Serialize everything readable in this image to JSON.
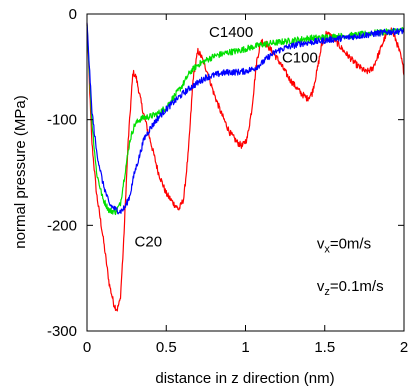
{
  "chart_data": {
    "type": "line",
    "xlabel": "distance in z direction (nm)",
    "ylabel": "normal pressure (MPa)",
    "xlim": [
      0,
      2
    ],
    "ylim": [
      -300,
      0
    ],
    "x_ticks": [
      0,
      0.5,
      1,
      1.5,
      2
    ],
    "x_tick_labels": [
      "0",
      "0.5",
      "1",
      "1.5",
      "2"
    ],
    "y_ticks": [
      0,
      -100,
      -200,
      -300
    ],
    "y_tick_labels": [
      "0",
      "-100",
      "-200",
      "-300"
    ],
    "grid": false,
    "series": [
      {
        "name": "C20",
        "color": "#ff0000",
        "points": [
          [
            0.0,
            -10
          ],
          [
            0.03,
            -120
          ],
          [
            0.06,
            -170
          ],
          [
            0.1,
            -210
          ],
          [
            0.14,
            -255
          ],
          [
            0.17,
            -275
          ],
          [
            0.19,
            -280
          ],
          [
            0.21,
            -270
          ],
          [
            0.23,
            -220
          ],
          [
            0.26,
            -120
          ],
          [
            0.29,
            -55
          ],
          [
            0.31,
            -60
          ],
          [
            0.35,
            -90
          ],
          [
            0.4,
            -120
          ],
          [
            0.45,
            -150
          ],
          [
            0.5,
            -170
          ],
          [
            0.55,
            -180
          ],
          [
            0.58,
            -185
          ],
          [
            0.61,
            -175
          ],
          [
            0.64,
            -130
          ],
          [
            0.67,
            -60
          ],
          [
            0.7,
            -35
          ],
          [
            0.72,
            -40
          ],
          [
            0.76,
            -55
          ],
          [
            0.8,
            -75
          ],
          [
            0.85,
            -95
          ],
          [
            0.9,
            -112
          ],
          [
            0.95,
            -122
          ],
          [
            0.98,
            -125
          ],
          [
            1.01,
            -118
          ],
          [
            1.04,
            -90
          ],
          [
            1.07,
            -45
          ],
          [
            1.1,
            -25
          ],
          [
            1.13,
            -28
          ],
          [
            1.2,
            -42
          ],
          [
            1.28,
            -62
          ],
          [
            1.35,
            -75
          ],
          [
            1.39,
            -80
          ],
          [
            1.42,
            -75
          ],
          [
            1.45,
            -55
          ],
          [
            1.48,
            -30
          ],
          [
            1.51,
            -18
          ],
          [
            1.55,
            -22
          ],
          [
            1.62,
            -35
          ],
          [
            1.7,
            -48
          ],
          [
            1.76,
            -55
          ],
          [
            1.8,
            -52
          ],
          [
            1.84,
            -38
          ],
          [
            1.88,
            -22
          ],
          [
            1.92,
            -15
          ],
          [
            1.95,
            -25
          ],
          [
            1.98,
            -40
          ],
          [
            2.0,
            -55
          ]
        ]
      },
      {
        "name": "C100",
        "color": "#0000ff",
        "points": [
          [
            0.0,
            -10
          ],
          [
            0.03,
            -90
          ],
          [
            0.06,
            -130
          ],
          [
            0.1,
            -160
          ],
          [
            0.14,
            -180
          ],
          [
            0.18,
            -185
          ],
          [
            0.21,
            -187
          ],
          [
            0.24,
            -183
          ],
          [
            0.27,
            -172
          ],
          [
            0.3,
            -150
          ],
          [
            0.33,
            -135
          ],
          [
            0.36,
            -118
          ],
          [
            0.4,
            -108
          ],
          [
            0.45,
            -98
          ],
          [
            0.5,
            -90
          ],
          [
            0.55,
            -83
          ],
          [
            0.6,
            -76
          ],
          [
            0.65,
            -70
          ],
          [
            0.7,
            -65
          ],
          [
            0.75,
            -60
          ],
          [
            0.8,
            -58
          ],
          [
            0.85,
            -56
          ],
          [
            0.9,
            -55
          ],
          [
            0.95,
            -55
          ],
          [
            1.0,
            -54
          ],
          [
            1.05,
            -52
          ],
          [
            1.1,
            -47
          ],
          [
            1.15,
            -40
          ],
          [
            1.2,
            -35
          ],
          [
            1.25,
            -32
          ],
          [
            1.3,
            -30
          ],
          [
            1.35,
            -28
          ],
          [
            1.4,
            -27
          ],
          [
            1.5,
            -25
          ],
          [
            1.6,
            -23
          ],
          [
            1.7,
            -21
          ],
          [
            1.8,
            -19
          ],
          [
            1.9,
            -17
          ],
          [
            2.0,
            -16
          ]
        ]
      },
      {
        "name": "C1400",
        "color": "#00e000",
        "points": [
          [
            0.0,
            -10
          ],
          [
            0.03,
            -100
          ],
          [
            0.06,
            -150
          ],
          [
            0.1,
            -175
          ],
          [
            0.14,
            -186
          ],
          [
            0.18,
            -187
          ],
          [
            0.21,
            -180
          ],
          [
            0.24,
            -150
          ],
          [
            0.27,
            -120
          ],
          [
            0.3,
            -105
          ],
          [
            0.33,
            -100
          ],
          [
            0.36,
            -98
          ],
          [
            0.4,
            -97
          ],
          [
            0.45,
            -94
          ],
          [
            0.5,
            -88
          ],
          [
            0.55,
            -78
          ],
          [
            0.6,
            -68
          ],
          [
            0.65,
            -55
          ],
          [
            0.7,
            -48
          ],
          [
            0.75,
            -44
          ],
          [
            0.8,
            -40
          ],
          [
            0.85,
            -38
          ],
          [
            0.9,
            -36
          ],
          [
            0.95,
            -35
          ],
          [
            1.0,
            -33
          ],
          [
            1.05,
            -31
          ],
          [
            1.1,
            -29
          ],
          [
            1.2,
            -27
          ],
          [
            1.3,
            -25
          ],
          [
            1.4,
            -23
          ],
          [
            1.5,
            -22
          ],
          [
            1.6,
            -21
          ],
          [
            1.7,
            -20
          ],
          [
            1.8,
            -18
          ],
          [
            1.9,
            -17
          ],
          [
            2.0,
            -15
          ]
        ]
      }
    ],
    "annotations": [
      {
        "text": "C1400",
        "x": 0.77,
        "y": -22
      },
      {
        "text": "C100",
        "x": 1.23,
        "y": -46
      },
      {
        "text": "C20",
        "x": 0.3,
        "y": -220
      }
    ],
    "conditions": [
      {
        "base": "v",
        "sub": "x",
        "rest": "=0m/s",
        "x": 1.45,
        "y": -222
      },
      {
        "base": "v",
        "sub": "z",
        "rest": "=0.1m/s",
        "x": 1.45,
        "y": -262
      }
    ]
  }
}
